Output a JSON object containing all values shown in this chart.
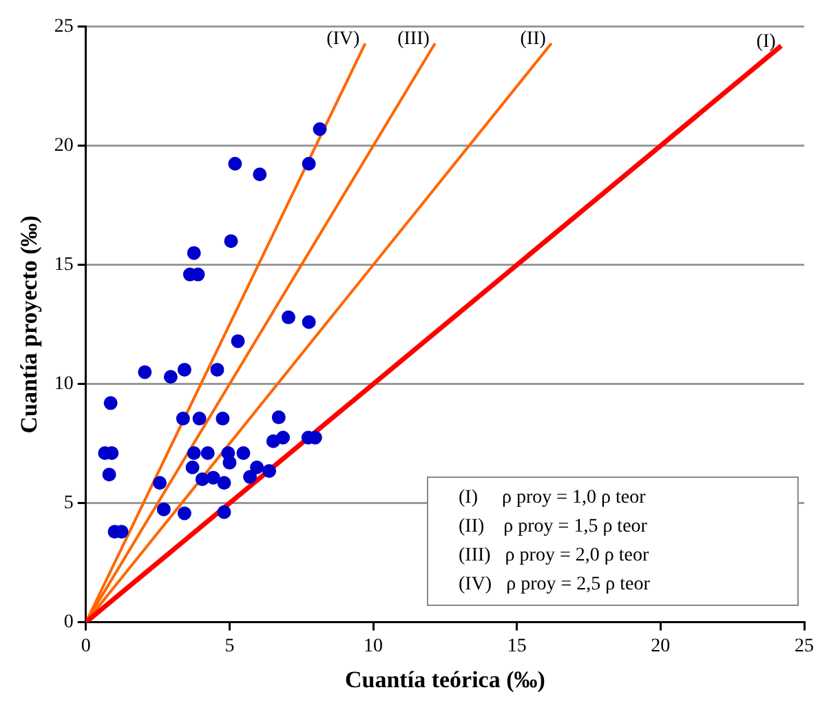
{
  "chart_data": {
    "type": "scatter",
    "xlabel": "Cuantía teórica (‰)",
    "ylabel": "Cuantía proyecto (‰)",
    "xlim": [
      0,
      25
    ],
    "xticks": [
      0,
      5,
      10,
      15,
      20,
      25
    ],
    "ylim": [
      0,
      25
    ],
    "yticks": [
      0,
      5,
      10,
      15,
      20,
      25
    ],
    "grid": "y",
    "legend": false,
    "series": [
      {
        "marker": "circle",
        "color": "#0000cc",
        "x": [
          8.14,
          5.19,
          6.05,
          7.76,
          5.05,
          3.76,
          3.62,
          3.9,
          7.05,
          7.76,
          5.29,
          2.05,
          2.95,
          3.43,
          4.57,
          0.86,
          3.38,
          3.95,
          4.76,
          6.71,
          0.66,
          0.9,
          3.76,
          4.24,
          4.95,
          5.48,
          6.52,
          6.86,
          7.74,
          7.98,
          3.71,
          5.0,
          5.95,
          6.38,
          5.71,
          0.81,
          2.57,
          4.05,
          4.43,
          4.81,
          2.71,
          3.43,
          4.81,
          1.0,
          1.24
        ],
        "values": [
          20.7,
          19.25,
          18.8,
          19.25,
          16.0,
          15.5,
          14.6,
          14.6,
          12.8,
          12.6,
          11.8,
          10.5,
          10.3,
          10.6,
          10.6,
          9.2,
          8.55,
          8.55,
          8.55,
          8.6,
          7.1,
          7.1,
          7.1,
          7.1,
          7.1,
          7.1,
          7.6,
          7.75,
          7.75,
          7.75,
          6.5,
          6.7,
          6.5,
          6.35,
          6.1,
          6.2,
          5.85,
          6.0,
          6.07,
          5.85,
          4.74,
          4.57,
          4.62,
          3.8,
          3.8
        ]
      },
      {
        "type": "line",
        "marker": "none",
        "name": "(I)",
        "color": "#ff0000",
        "x": [
          0,
          24.2
        ],
        "values": [
          0,
          24.2
        ]
      },
      {
        "type": "line",
        "marker": "none",
        "name": "(II)",
        "color": "#ff6600",
        "x": [
          0,
          16.2
        ],
        "values": [
          0,
          24.3
        ]
      },
      {
        "type": "line",
        "marker": "none",
        "name": "(III)",
        "color": "#ff6600",
        "x": [
          0,
          12.15
        ],
        "values": [
          0,
          24.3
        ]
      },
      {
        "type": "line",
        "marker": "none",
        "name": "(IV)",
        "color": "#ff6600",
        "x": [
          0,
          9.72
        ],
        "values": [
          0,
          24.3
        ]
      }
    ],
    "annotations": [
      "(I)     ρ proy = 1,0 ρ teor",
      "(II)    ρ proy = 1,5 ρ teor",
      "(III)   ρ proy = 2,0 ρ teor",
      "(IV)   ρ proy = 2,5 ρ teor"
    ]
  }
}
